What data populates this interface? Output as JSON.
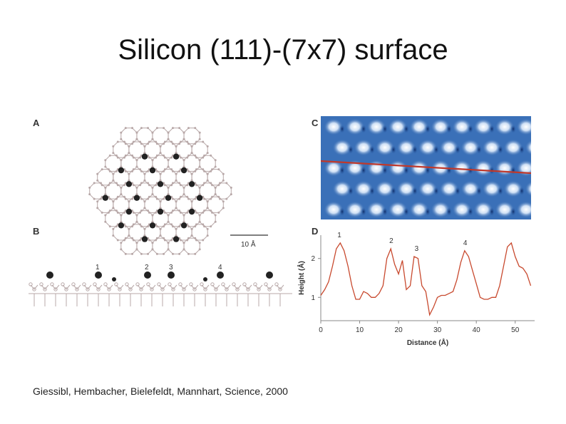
{
  "slide": {
    "title": "Silicon (111)-(7x7) surface",
    "citation": "Giessibl, Hembacher, Bielefeldt, Mannhart, Science, 2000"
  },
  "panels": {
    "a": {
      "letter": "A",
      "scale_bar": "10 Å"
    },
    "b": {
      "letter": "B",
      "labels": [
        "1",
        "2",
        "3",
        "4"
      ]
    },
    "c": {
      "letter": "C"
    },
    "d": {
      "letter": "D",
      "peak_labels": [
        "1",
        "2",
        "3",
        "4"
      ]
    }
  },
  "colors": {
    "profile_line": "#c8492e",
    "afm_blue": "#2f66b0",
    "scan_line": "#c0392b",
    "adatom": "#222222",
    "lattice": "#b8a8a8"
  },
  "chart_data": {
    "type": "line",
    "title": "",
    "xlabel": "Distance (Å)",
    "ylabel": "Height (Å)",
    "xlim": [
      0,
      55
    ],
    "ylim": [
      0.4,
      2.6
    ],
    "xticks": [
      0,
      10,
      20,
      30,
      40,
      50
    ],
    "yticks": [
      1,
      2
    ],
    "grid": false,
    "series": [
      {
        "x": [
          0,
          1,
          2,
          3,
          4,
          5,
          6,
          7,
          8,
          9,
          10,
          11,
          12,
          13,
          14,
          15,
          16,
          17,
          18,
          19,
          20,
          21,
          22,
          23,
          24,
          25,
          26,
          27,
          28,
          29,
          30,
          31,
          32,
          33,
          34,
          35,
          36,
          37,
          38,
          39,
          40,
          41,
          42,
          43,
          44,
          45,
          46,
          47,
          48,
          49,
          50,
          51,
          52,
          53,
          54
        ],
        "y": [
          1.05,
          1.2,
          1.4,
          1.8,
          2.25,
          2.4,
          2.2,
          1.8,
          1.3,
          0.95,
          0.95,
          1.15,
          1.1,
          1.0,
          1.0,
          1.1,
          1.3,
          2.0,
          2.25,
          1.85,
          1.6,
          1.95,
          1.2,
          1.3,
          2.05,
          2.0,
          1.3,
          1.15,
          0.55,
          0.75,
          1.0,
          1.05,
          1.05,
          1.1,
          1.15,
          1.45,
          1.9,
          2.2,
          2.05,
          1.7,
          1.35,
          1.0,
          0.95,
          0.95,
          1.0,
          1.0,
          1.3,
          1.8,
          2.3,
          2.4,
          2.05,
          1.8,
          1.75,
          1.6,
          1.3
        ]
      }
    ]
  }
}
